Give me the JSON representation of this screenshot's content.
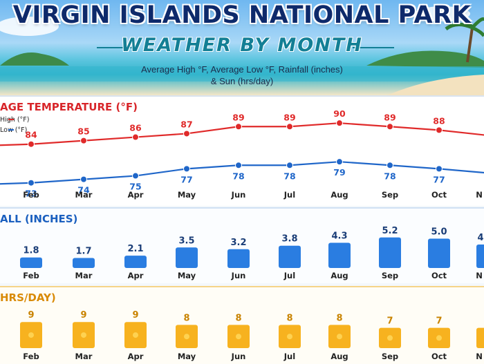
{
  "header": {
    "title": "VIRGIN ISLANDS NATIONAL PARK",
    "subtitle": "WEATHER BY MONTH",
    "caption_line1": "Average High °F, Average Low °F, Rainfall (inches)",
    "caption_line2": "& Sun (hrs/day)"
  },
  "colors": {
    "high": "#e02a2a",
    "low": "#1f66c9",
    "rain": "#2a7de1",
    "sun": "#f7b21f",
    "title": "#0e2a6b"
  },
  "chart_data": [
    {
      "type": "line",
      "title": "AGE TEMPERATURE (°F)",
      "legend_position": "top-left",
      "categories": [
        "",
        "Feb",
        "Mar",
        "Apr",
        "May",
        "Jun",
        "Jul",
        "Aug",
        "Sep",
        "Oct",
        "N"
      ],
      "series": [
        {
          "name": "High (°F)",
          "values": [
            null,
            84,
            85,
            86,
            87,
            89,
            89,
            90,
            89,
            88,
            null
          ]
        },
        {
          "name": "Low (°F)",
          "values": [
            null,
            73,
            74,
            75,
            77,
            78,
            78,
            79,
            78,
            77,
            null
          ]
        }
      ],
      "edge_values": {
        "high_left": 83.5,
        "high_right": 86.5,
        "low_left": 72.5,
        "low_right": 75.8
      },
      "ylim": [
        70,
        92
      ]
    },
    {
      "type": "bar",
      "title": "ALL (INCHES)",
      "categories": [
        "Feb",
        "Mar",
        "Apr",
        "May",
        "Jun",
        "Jul",
        "Aug",
        "Sep",
        "Oct",
        "N"
      ],
      "values": [
        1.8,
        1.7,
        2.1,
        3.5,
        3.2,
        3.8,
        4.3,
        5.2,
        5.0,
        4
      ],
      "value_labels": [
        "1.8",
        "1.7",
        "2.1",
        "3.5",
        "3.2",
        "3.8",
        "4.3",
        "5.2",
        "5.0",
        "4"
      ],
      "ylim": [
        0,
        6
      ]
    },
    {
      "type": "bar",
      "title": "HRS/DAY)",
      "categories": [
        "Feb",
        "Mar",
        "Apr",
        "May",
        "Jun",
        "Jul",
        "Aug",
        "Sep",
        "Oct",
        "N"
      ],
      "values": [
        9,
        9,
        9,
        8,
        8,
        8,
        8,
        7,
        7,
        7
      ],
      "value_labels": [
        "9",
        "9",
        "9",
        "8",
        "8",
        "8",
        "8",
        "7",
        "7",
        ""
      ],
      "ylim": [
        0,
        10
      ]
    }
  ]
}
